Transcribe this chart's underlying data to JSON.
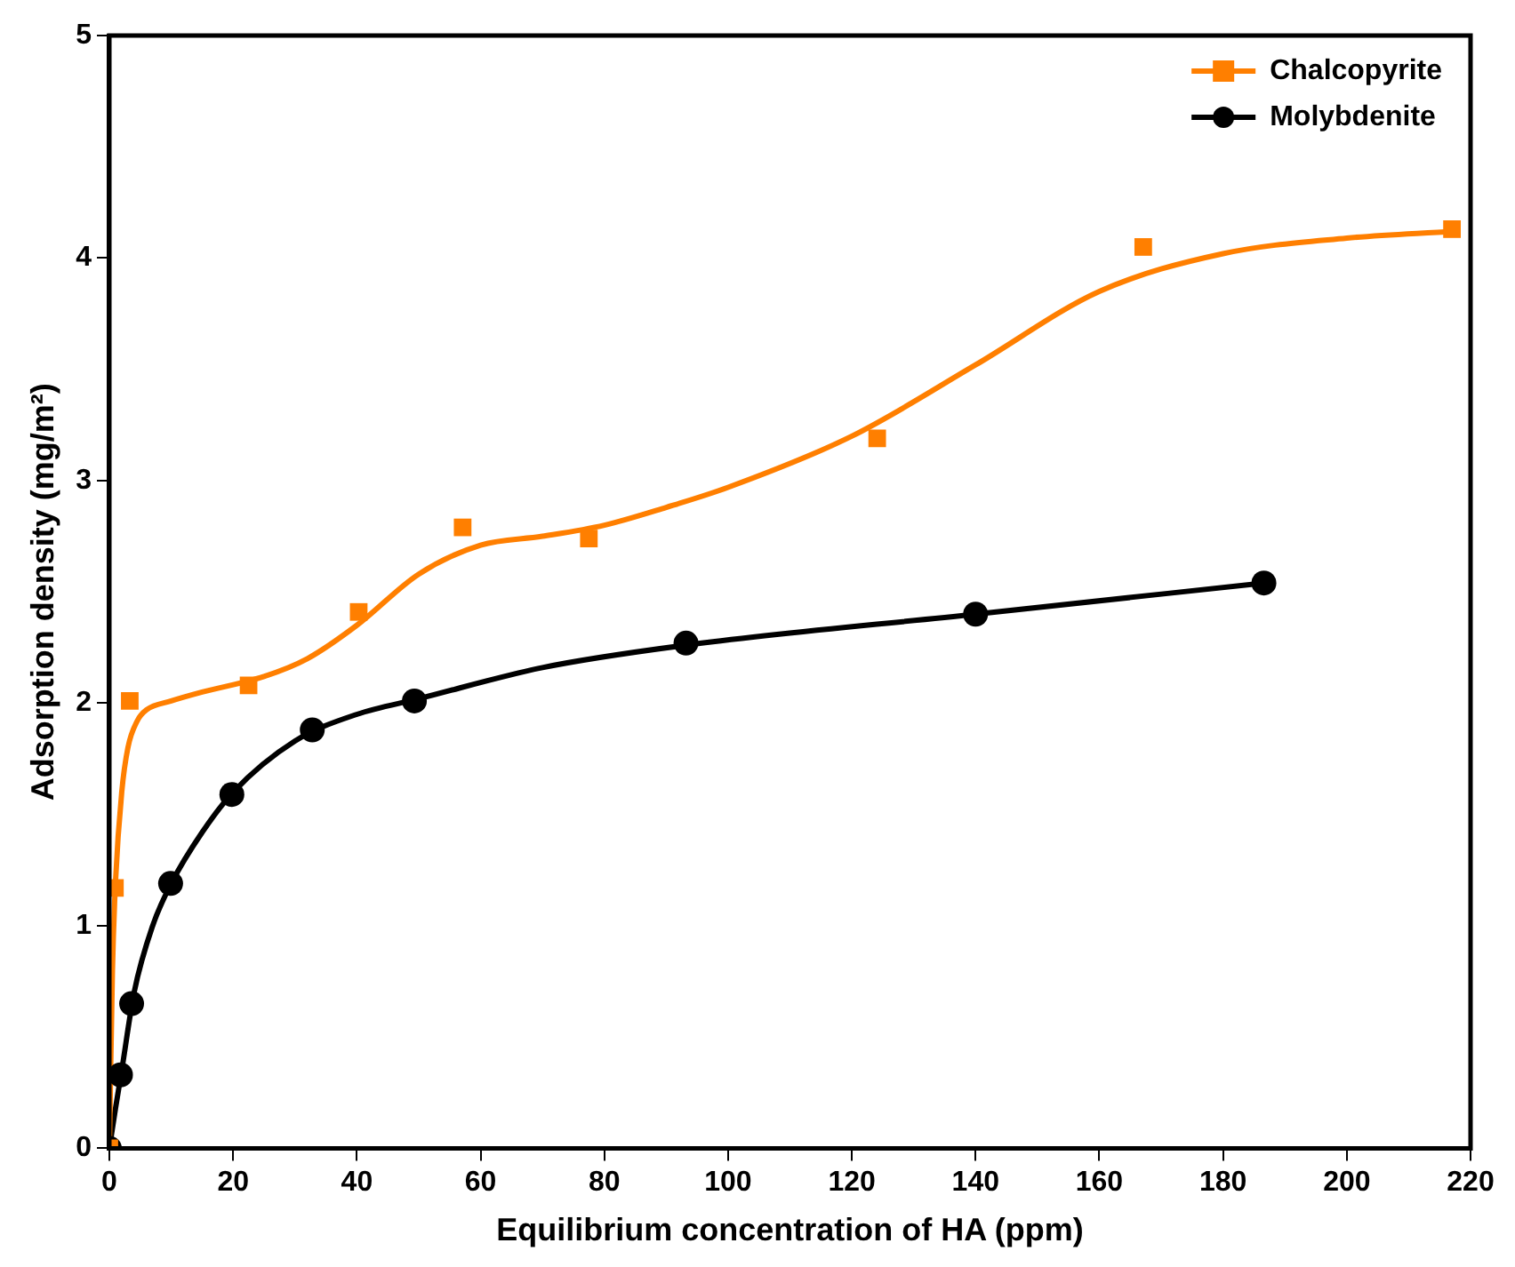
{
  "chart_data": {
    "type": "scatter",
    "xlabel": "Equilibrium concentration of HA (ppm)",
    "ylabel": "Adsorption density (mg/m²)",
    "xlim": [
      0,
      220
    ],
    "xticks": [
      0,
      20,
      40,
      60,
      80,
      100,
      120,
      140,
      160,
      180,
      200,
      220
    ],
    "ylim": [
      0,
      5
    ],
    "yticks": [
      0,
      1,
      2,
      3,
      4,
      5
    ],
    "grid": false,
    "legend": "top right",
    "series": [
      {
        "name": "Chalcopyrite",
        "type": "scatter",
        "marker": "square",
        "color": "#ff7f00",
        "x": [
          0,
          0.9,
          3.3,
          22.5,
          40.3,
          57.1,
          77.5,
          124.1,
          167.1,
          217
        ],
        "values": [
          0,
          1.17,
          2.01,
          2.08,
          2.41,
          2.79,
          2.74,
          3.19,
          4.05,
          4.13
        ]
      },
      {
        "name": "Molybdenite",
        "type": "scatter",
        "marker": "circle",
        "color": "#000000",
        "x": [
          0,
          1.8,
          3.6,
          9.9,
          19.8,
          32.8,
          49.3,
          93.2,
          140,
          186.6
        ],
        "values": [
          0,
          0.33,
          0.65,
          1.19,
          1.59,
          1.88,
          2.01,
          2.27,
          2.4,
          2.54
        ]
      },
      {
        "type": "line",
        "marker": "none",
        "line_style": "solid",
        "color": "#ff7f00",
        "x": [
          0,
          0.5,
          1,
          2,
          3,
          4.5,
          6,
          10,
          15,
          25,
          32,
          40,
          50,
          60,
          70,
          80,
          90,
          100,
          120,
          140,
          160,
          180,
          200,
          217
        ],
        "values": [
          0,
          0.8,
          1.2,
          1.6,
          1.8,
          1.92,
          1.97,
          2.01,
          2.05,
          2.12,
          2.2,
          2.35,
          2.58,
          2.71,
          2.75,
          2.8,
          2.88,
          2.97,
          3.2,
          3.52,
          3.85,
          4.02,
          4.09,
          4.12
        ]
      },
      {
        "type": "line",
        "marker": "none",
        "line_style": "solid",
        "color": "#000000",
        "x": [
          0,
          1,
          2,
          4,
          7,
          10,
          15,
          20,
          30,
          40,
          50,
          70,
          93,
          140,
          186.6
        ],
        "values": [
          0,
          0.18,
          0.35,
          0.7,
          1.0,
          1.19,
          1.42,
          1.6,
          1.83,
          1.95,
          2.02,
          2.16,
          2.26,
          2.4,
          2.54
        ]
      }
    ]
  }
}
